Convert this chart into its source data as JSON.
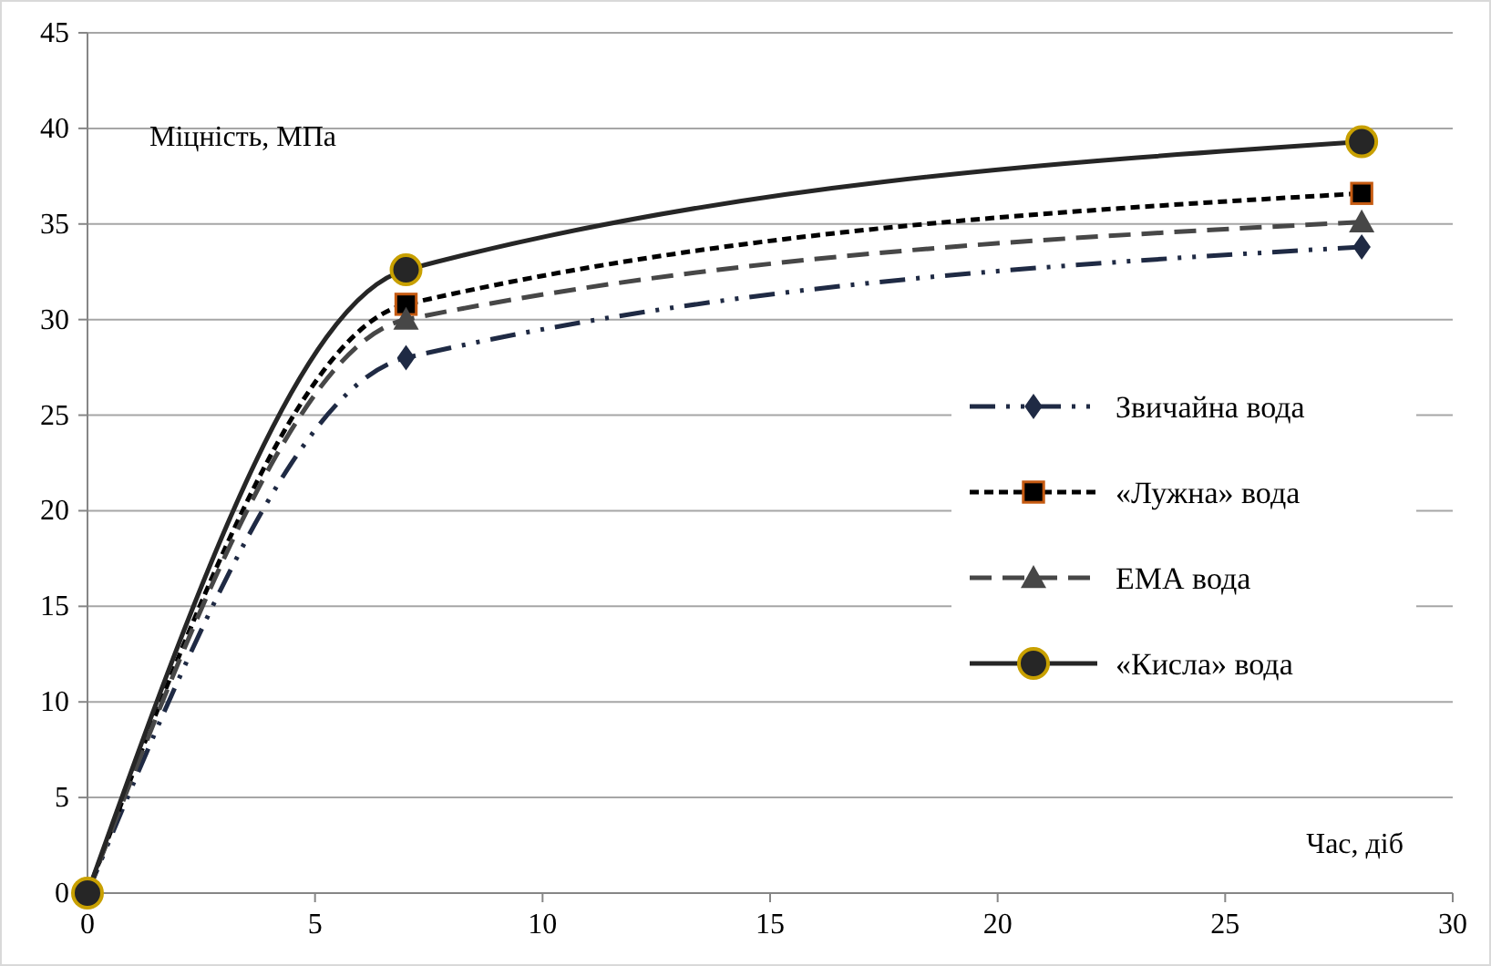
{
  "chart_data": {
    "type": "line",
    "xlabel": "Час, діб",
    "ylabel": "Міцність, МПа",
    "x": [
      0,
      7,
      28
    ],
    "xlim": [
      0,
      30
    ],
    "xticks": [
      0,
      5,
      10,
      15,
      20,
      25,
      30
    ],
    "ylim": [
      0,
      45
    ],
    "yticks": [
      0,
      5,
      10,
      15,
      20,
      25,
      30,
      35,
      40,
      45
    ],
    "grid": "y",
    "legend": "right",
    "series": [
      {
        "name": "Звичайна вода",
        "color": "#1f2a44",
        "values": [
          0,
          28,
          33.8
        ],
        "marker": "diamond",
        "line_style": "dashdot"
      },
      {
        "name": "«Лужна» вода",
        "color": "#000000",
        "values": [
          0,
          30.8,
          36.6
        ],
        "marker": "square",
        "line_style": "dotted"
      },
      {
        "name": "ЕМА вода",
        "color": "#474747",
        "values": [
          0,
          30,
          35.1
        ],
        "marker": "triangle",
        "line_style": "dashed"
      },
      {
        "name": "«Кисла» вода",
        "color": "#262626",
        "values": [
          0,
          32.6,
          39.3
        ],
        "marker": "circle",
        "line_style": "solid"
      }
    ]
  }
}
